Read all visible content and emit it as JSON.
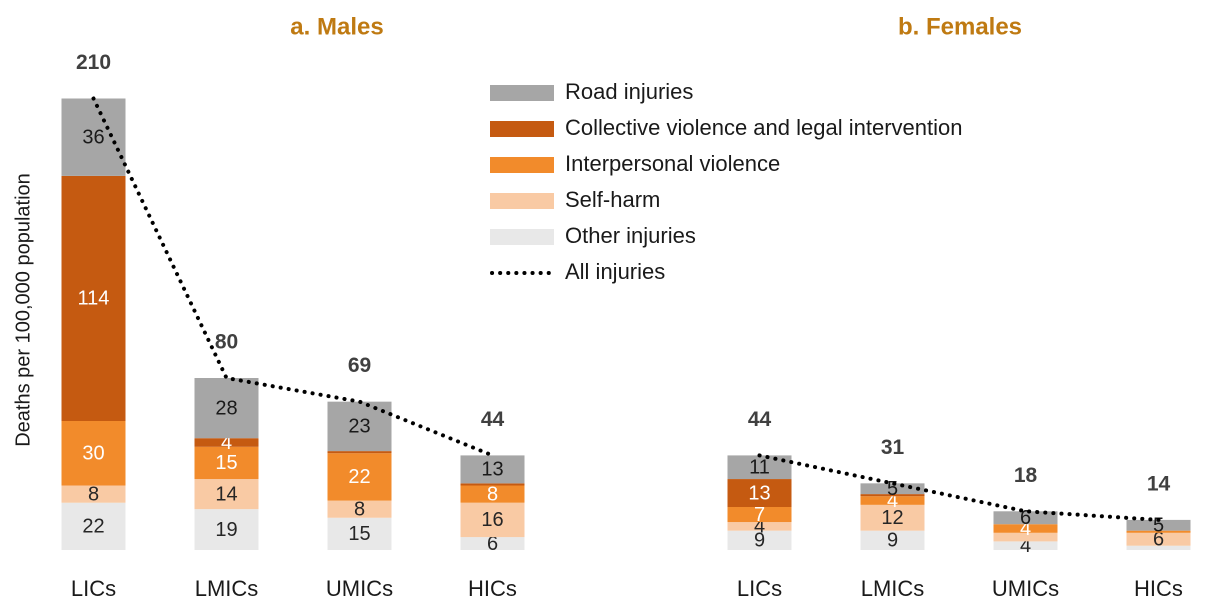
{
  "chart_data": {
    "type": "bar",
    "stacked": true,
    "y_label": "Deaths per 100,000 population",
    "ylim": [
      0,
      240
    ],
    "series": [
      {
        "name": "Other injuries",
        "color": "#e8e8e8",
        "label_color": "#262626"
      },
      {
        "name": "Self-harm",
        "color": "#f9caa4",
        "label_color": "#262626"
      },
      {
        "name": "Interpersonal violence",
        "color": "#f28b2b",
        "label_color": "#ffffff"
      },
      {
        "name": "Collective violence and legal intervention",
        "color": "#c55a11",
        "label_color": "#ffffff"
      },
      {
        "name": "Road injuries",
        "color": "#a6a6a6",
        "label_color": "#1a1a1a"
      }
    ],
    "line": {
      "name": "All injuries",
      "color": "#000000",
      "style": "dotted"
    },
    "panels": [
      {
        "title": "a.   Males",
        "categories": [
          "LICs",
          "LMICs",
          "UMICs",
          "HICs"
        ],
        "series_values": [
          [
            22,
            19,
            15,
            6
          ],
          [
            8,
            14,
            8,
            16
          ],
          [
            30,
            15,
            22,
            8
          ],
          [
            114,
            4,
            1,
            1
          ],
          [
            36,
            28,
            23,
            13
          ]
        ],
        "value_labels": [
          [
            "22",
            "19",
            "15",
            "6"
          ],
          [
            "8",
            "14",
            "8",
            "16"
          ],
          [
            "30",
            "15",
            "22",
            "8"
          ],
          [
            "114",
            "4",
            null,
            null
          ],
          [
            "36",
            "28",
            "23",
            "13"
          ]
        ],
        "totals": [
          210,
          80,
          69,
          44
        ]
      },
      {
        "title": "b.   Females",
        "categories": [
          "LICs",
          "LMICs",
          "UMICs",
          "HICs"
        ],
        "series_values": [
          [
            9,
            9,
            4,
            2
          ],
          [
            4,
            12,
            4,
            6
          ],
          [
            7,
            4,
            4,
            1
          ],
          [
            13,
            1,
            0,
            0
          ],
          [
            11,
            5,
            6,
            5
          ]
        ],
        "value_labels": [
          [
            "9",
            "9",
            "4",
            null
          ],
          [
            "4",
            "12",
            null,
            "6"
          ],
          [
            "7",
            "4",
            "4",
            null
          ],
          [
            "13",
            null,
            null,
            null
          ],
          [
            "11",
            "5",
            "6",
            "5"
          ]
        ],
        "totals": [
          44,
          31,
          18,
          14
        ]
      }
    ]
  }
}
